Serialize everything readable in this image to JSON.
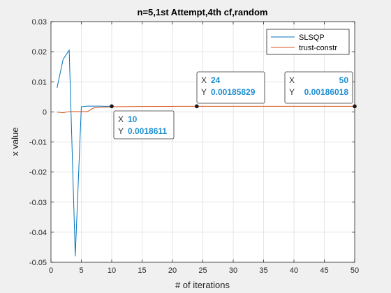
{
  "chart_data": {
    "type": "line",
    "title": "n=5,1st Attempt,4th cf,random",
    "xlabel": "# of iterations",
    "ylabel": "x value",
    "xlim": [
      0,
      50
    ],
    "ylim": [
      -0.05,
      0.03
    ],
    "x_ticks": [
      0,
      5,
      10,
      15,
      20,
      25,
      30,
      35,
      40,
      45,
      50
    ],
    "y_ticks": [
      0.03,
      0.02,
      0.01,
      0,
      -0.01,
      -0.02,
      -0.03,
      -0.04,
      -0.05
    ],
    "y_tick_labels": [
      "0.03",
      "0.02",
      "0.01",
      "0",
      "-0.01",
      "-0.02",
      "-0.03",
      "-0.04",
      "-0.05"
    ],
    "grid": true,
    "legend_position": "top-right",
    "series": [
      {
        "name": "SLSQP",
        "color": "#0072bd",
        "x": [
          1,
          2,
          3,
          4,
          5,
          6,
          7,
          8,
          9,
          10
        ],
        "y": [
          0.008,
          0.0175,
          0.0205,
          -0.048,
          0.0017,
          0.0019,
          0.0019,
          0.0019,
          0.00186,
          0.0018611
        ]
      },
      {
        "name": "trust-constr",
        "color": "#d95319",
        "x": [
          1,
          2,
          3,
          4,
          5,
          6,
          7,
          8,
          10,
          15,
          20,
          24,
          30,
          40,
          50
        ],
        "y": [
          -0.0001,
          -0.0003,
          0.0001,
          0.0001,
          0.0001,
          0.0001,
          0.0013,
          0.0015,
          0.0017,
          0.0018,
          0.00184,
          0.00185829,
          0.00186,
          0.00186,
          0.00186018
        ]
      }
    ],
    "datatips": [
      {
        "x": 10,
        "y": "0.0018611",
        "x_label": "X",
        "y_label": "Y",
        "x_text": "10",
        "y_text": "0.0018611",
        "y_value": 0.0018611
      },
      {
        "x": 24,
        "y": "0.00185829",
        "x_label": "X",
        "y_label": "Y",
        "x_text": "24",
        "y_text": "0.00185829",
        "y_value": 0.00185829
      },
      {
        "x": 50,
        "y": "0.00186018",
        "x_label": "X",
        "y_label": "Y",
        "x_text": "50",
        "y_text": "0.00186018",
        "y_value": 0.00186018
      }
    ]
  }
}
